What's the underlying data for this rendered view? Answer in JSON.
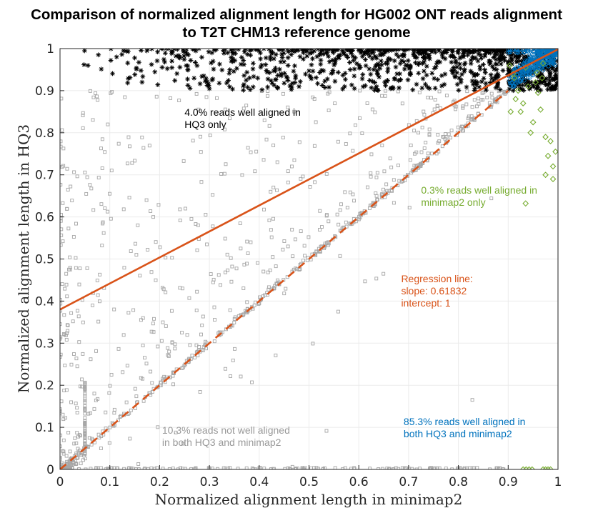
{
  "chart_data": {
    "type": "scatter",
    "title": [
      "Comparison of normalized alignment length for HG002 ONT reads alignment",
      "to T2T CHM13 reference genome"
    ],
    "xlabel": "Normalized alignment length in minimap2",
    "ylabel": "Normalized alignment length in HQ3",
    "xlim": [
      0,
      1
    ],
    "ylim": [
      0,
      1
    ],
    "xticks": [
      "0",
      "0.1",
      "0.2",
      "0.3",
      "0.4",
      "0.5",
      "0.6",
      "0.7",
      "0.8",
      "0.9",
      "1"
    ],
    "yticks": [
      "0",
      "0.1",
      "0.2",
      "0.3",
      "0.4",
      "0.5",
      "0.6",
      "0.7",
      "0.8",
      "0.9",
      "1"
    ],
    "grid": true,
    "colors": {
      "hq3_only": "#000000",
      "both_well": "#0072BD",
      "minimap2_only": "#77AC30",
      "neither": "#a6a6a6",
      "regression": "#D95319",
      "text_gray": "#999999"
    },
    "series": [
      {
        "key": "hq3_only",
        "marker": "asterisk",
        "region": {
          "x": [
            0,
            0.9
          ],
          "y": [
            0.9,
            1
          ]
        }
      },
      {
        "key": "both_well",
        "marker": "circle",
        "region": {
          "x": [
            0.9,
            1
          ],
          "y": [
            0.9,
            1
          ]
        }
      },
      {
        "key": "minimap2_only",
        "marker": "diamond",
        "points": [
          [
            0.903,
            0.96
          ],
          [
            0.91,
            0.94
          ],
          [
            0.915,
            0.88
          ],
          [
            0.92,
            0.9
          ],
          [
            0.925,
            0.85
          ],
          [
            0.93,
            0.87
          ],
          [
            0.935,
            0.955
          ],
          [
            0.94,
            0.91
          ],
          [
            0.945,
            0.8
          ],
          [
            0.95,
            0.825
          ],
          [
            0.955,
            0.92
          ],
          [
            0.96,
            0.895
          ],
          [
            0.965,
            0.855
          ],
          [
            0.97,
            0.965
          ],
          [
            0.975,
            0.79
          ],
          [
            0.98,
            0.745
          ],
          [
            0.985,
            0.78
          ],
          [
            0.99,
            0.72
          ],
          [
            0.995,
            0.755
          ],
          [
            0.975,
            0.7
          ],
          [
            0.99,
            0.69
          ],
          [
            0.935,
            0.632
          ],
          [
            0.905,
            0.85
          ],
          [
            0.912,
            0.93
          ],
          [
            0.958,
            0.943
          ],
          [
            0.968,
            0.93
          ],
          [
            0.93,
            0.0
          ],
          [
            0.936,
            0.0
          ],
          [
            0.942,
            0.0
          ],
          [
            0.948,
            0.0
          ],
          [
            0.97,
            0.0
          ],
          [
            0.975,
            0.0
          ],
          [
            0.98,
            0.0
          ],
          [
            0.985,
            0.0
          ]
        ]
      },
      {
        "key": "neither",
        "marker": "square",
        "region": {
          "x": [
            0,
            1
          ],
          "y": [
            0,
            1
          ]
        }
      }
    ],
    "regression": {
      "slope": 0.61832,
      "intercept_y": 0.38
    },
    "diagonal": {
      "from": [
        0,
        0
      ],
      "to": [
        0.9,
        0.9
      ]
    },
    "annotations": [
      {
        "key": "hq3_only",
        "color": "#000000",
        "lines": [
          "4.0% reads well aligned in",
          "HQ3 only"
        ],
        "pos": [
          0.25,
          0.84
        ]
      },
      {
        "key": "minimap2_only",
        "color": "#77AC30",
        "lines": [
          "0.3% reads well aligned in",
          "minimap2 only"
        ],
        "pos": [
          0.725,
          0.655
        ]
      },
      {
        "key": "regression",
        "color": "#D95319",
        "lines": [
          "Regression line:",
          "slope: 0.61832",
          "intercept: 1"
        ],
        "pos": [
          0.685,
          0.445
        ]
      },
      {
        "key": "both_well",
        "color": "#0072BD",
        "lines": [
          "85.3% reads well aligned in",
          "both HQ3 and minimap2"
        ],
        "pos": [
          0.69,
          0.105
        ]
      },
      {
        "key": "neither",
        "color": "#999999",
        "lines": [
          "10.3% reads not well aligned",
          "in both HQ3 and minimap2"
        ],
        "pos": [
          0.205,
          0.085
        ]
      }
    ]
  }
}
